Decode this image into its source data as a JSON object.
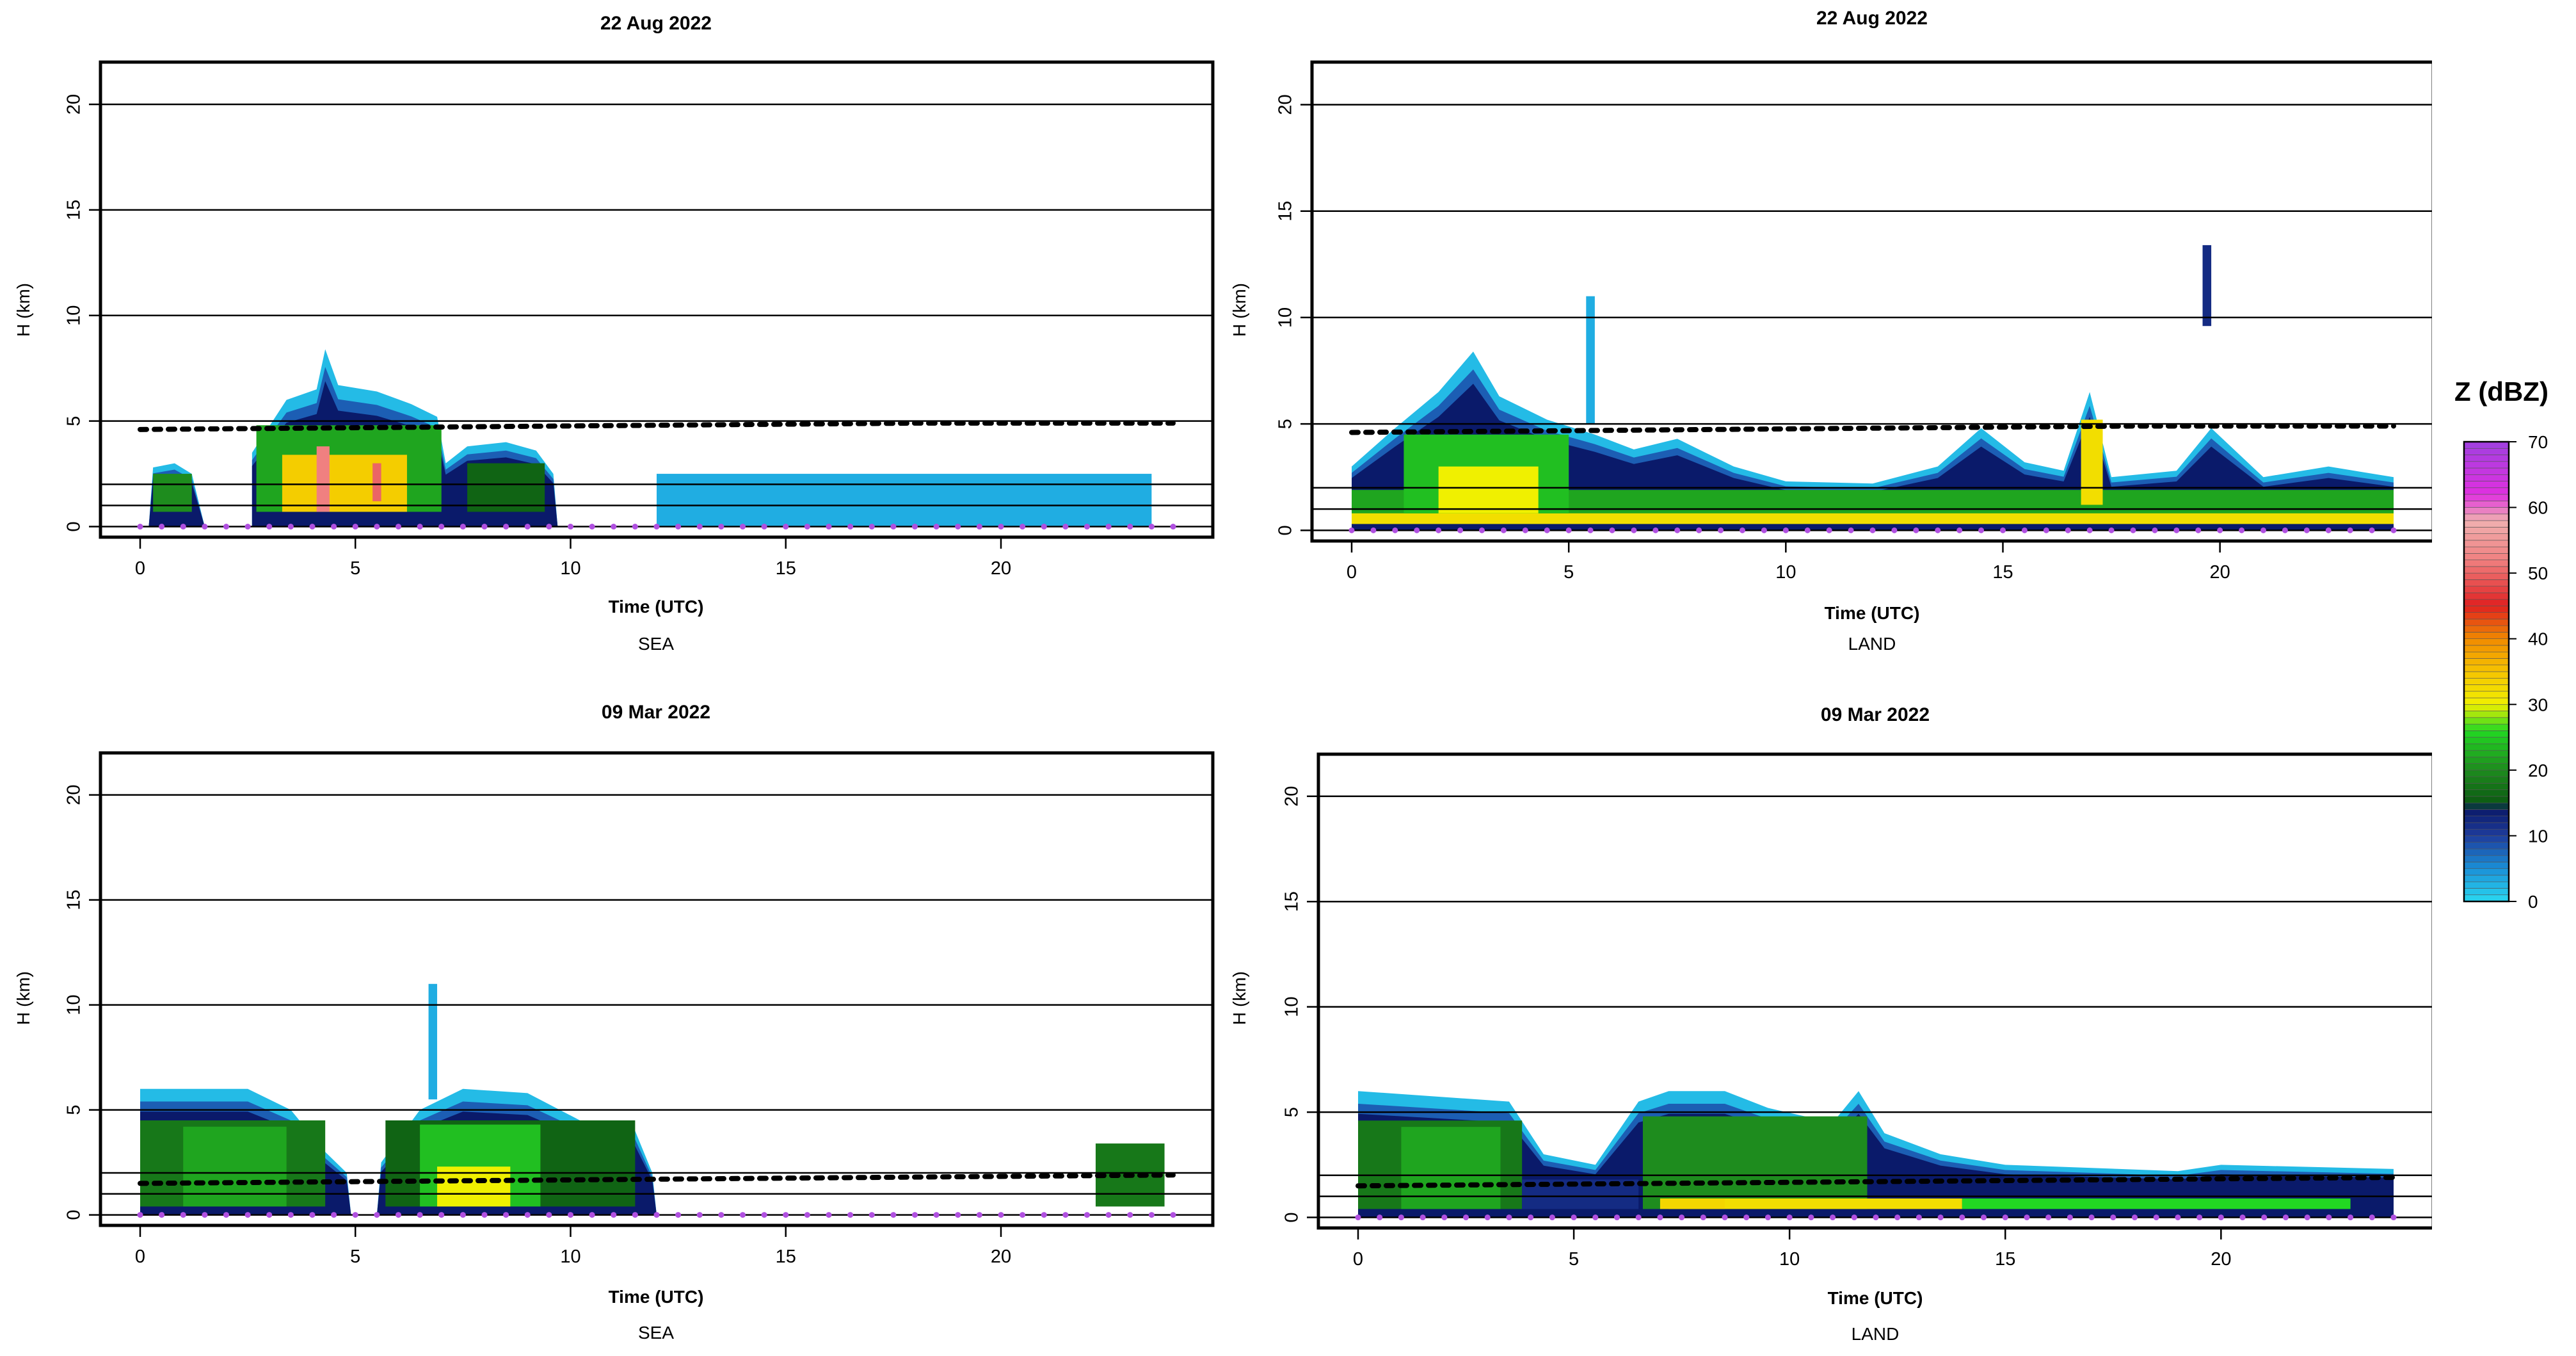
{
  "chart_data": [
    {
      "type": "heatmap",
      "title": "22 Aug 2022",
      "subtitle": "SEA",
      "xlabel": "Time (UTC)",
      "ylabel": "H (km)",
      "xlim": [
        0,
        24
      ],
      "ylim": [
        -0.5,
        22
      ],
      "xticks": [
        0,
        5,
        10,
        15,
        20
      ],
      "yticks": [
        0,
        5,
        10,
        15,
        20
      ],
      "hlines": [
        0,
        1,
        2,
        5,
        10,
        15,
        20
      ],
      "freezing_level": [
        [
          0,
          4.6
        ],
        [
          6,
          4.7
        ],
        [
          12,
          4.8
        ],
        [
          18,
          4.9
        ],
        [
          24,
          4.9
        ]
      ],
      "cloud_top": [
        [
          0.2,
          0
        ],
        [
          0.3,
          2.8
        ],
        [
          0.8,
          3
        ],
        [
          1.2,
          2.5
        ],
        [
          1.5,
          0
        ],
        [
          2.6,
          0
        ],
        [
          2.6,
          3.5
        ],
        [
          3.4,
          6
        ],
        [
          4.1,
          6.5
        ],
        [
          4.3,
          8.4
        ],
        [
          4.6,
          6.7
        ],
        [
          5.5,
          6.4
        ],
        [
          6.3,
          5.8
        ],
        [
          6.9,
          5.2
        ],
        [
          7.1,
          3
        ],
        [
          7.6,
          3.8
        ],
        [
          8.5,
          4
        ],
        [
          9.2,
          3.6
        ],
        [
          9.6,
          2.5
        ],
        [
          9.7,
          0
        ]
      ],
      "cloud_base": [
        0.7
      ],
      "cells": [
        {
          "t0": 0.3,
          "t1": 1.2,
          "h0": 0.7,
          "h1": 2.5,
          "dbz": 20
        },
        {
          "t0": 2.7,
          "t1": 7.0,
          "h0": 0.7,
          "h1": 4.8,
          "dbz": 22
        },
        {
          "t0": 3.3,
          "t1": 6.2,
          "h0": 0.7,
          "h1": 3.4,
          "dbz": 34
        },
        {
          "t0": 4.1,
          "t1": 4.4,
          "h0": 0.7,
          "h1": 3.8,
          "dbz": 52
        },
        {
          "t0": 5.4,
          "t1": 5.6,
          "h0": 1.2,
          "h1": 3.0,
          "dbz": 50
        },
        {
          "t0": 7.6,
          "t1": 9.4,
          "h0": 0.7,
          "h1": 3.0,
          "dbz": 16
        },
        {
          "t0": 12.0,
          "t1": 23.5,
          "h0": 0.0,
          "h1": 2.5,
          "dbz": 3
        }
      ]
    },
    {
      "type": "heatmap",
      "title": "22 Aug 2022",
      "subtitle": "LAND",
      "xlabel": "Time (UTC)",
      "ylabel": "H (km)",
      "xlim": [
        0,
        24
      ],
      "ylim": [
        -0.5,
        22
      ],
      "xticks": [
        0,
        5,
        10,
        15,
        20
      ],
      "yticks": [
        0,
        5,
        10,
        15,
        20
      ],
      "hlines": [
        0,
        1,
        2,
        5,
        10,
        15,
        20
      ],
      "freezing_level": [
        [
          0,
          4.6
        ],
        [
          6,
          4.7
        ],
        [
          12,
          4.8
        ],
        [
          18,
          4.9
        ],
        [
          24,
          4.9
        ]
      ],
      "cloud_top": [
        [
          0,
          0
        ],
        [
          0,
          3
        ],
        [
          1,
          4.8
        ],
        [
          2,
          6.5
        ],
        [
          2.8,
          8.4
        ],
        [
          3.4,
          6.3
        ],
        [
          4.5,
          5.2
        ],
        [
          5.6,
          4.5
        ],
        [
          6.5,
          3.8
        ],
        [
          7.5,
          4.3
        ],
        [
          8.8,
          3
        ],
        [
          10,
          2.3
        ],
        [
          12,
          2.2
        ],
        [
          13.5,
          3
        ],
        [
          14.5,
          4.8
        ],
        [
          15.5,
          3.2
        ],
        [
          16.4,
          2.8
        ],
        [
          17,
          6.5
        ],
        [
          17.5,
          2.5
        ],
        [
          19,
          2.8
        ],
        [
          19.8,
          4.8
        ],
        [
          21,
          2.5
        ],
        [
          22.5,
          3
        ],
        [
          24,
          2.5
        ],
        [
          24,
          0
        ]
      ],
      "cells": [
        {
          "t0": 0.0,
          "t1": 24.0,
          "h0": 0.3,
          "h1": 1.9,
          "dbz": 22
        },
        {
          "t0": 0.0,
          "t1": 24.0,
          "h0": 0.3,
          "h1": 0.8,
          "dbz": 32
        },
        {
          "t0": 1.2,
          "t1": 5.0,
          "h0": 0.8,
          "h1": 4.5,
          "dbz": 24
        },
        {
          "t0": 2.0,
          "t1": 4.3,
          "h0": 0.8,
          "h1": 3.0,
          "dbz": 30
        },
        {
          "t0": 16.8,
          "t1": 17.3,
          "h0": 1.2,
          "h1": 5.2,
          "dbz": 32
        },
        {
          "t0": 19.6,
          "t1": 19.8,
          "h0": 9.6,
          "h1": 13.4,
          "dbz": 12
        },
        {
          "t0": 5.4,
          "t1": 5.6,
          "h0": 5.0,
          "h1": 11.0,
          "dbz": 3
        }
      ]
    },
    {
      "type": "heatmap",
      "title": "09 Mar 2022",
      "subtitle": "SEA",
      "xlabel": "Time (UTC)",
      "ylabel": "H (km)",
      "xlim": [
        0,
        24
      ],
      "ylim": [
        -0.5,
        22
      ],
      "xticks": [
        0,
        5,
        10,
        15,
        20
      ],
      "yticks": [
        0,
        5,
        10,
        15,
        20
      ],
      "hlines": [
        0,
        1,
        2,
        5,
        10,
        15,
        20
      ],
      "freezing_level": [
        [
          0,
          1.5
        ],
        [
          6,
          1.6
        ],
        [
          12,
          1.7
        ],
        [
          18,
          1.8
        ],
        [
          24,
          1.9
        ]
      ],
      "cloud_top": [
        [
          0,
          0
        ],
        [
          0,
          6
        ],
        [
          2.5,
          6
        ],
        [
          3.5,
          5
        ],
        [
          4.3,
          3
        ],
        [
          4.8,
          2
        ],
        [
          4.9,
          0
        ],
        [
          5.5,
          0
        ],
        [
          5.6,
          2.5
        ],
        [
          6.5,
          5
        ],
        [
          7.5,
          6
        ],
        [
          9,
          5.8
        ],
        [
          10.5,
          4.2
        ],
        [
          11.5,
          4
        ],
        [
          11.9,
          2
        ],
        [
          12,
          0
        ]
      ],
      "cells": [
        {
          "t0": 0.0,
          "t1": 4.3,
          "h0": 0.4,
          "h1": 4.5,
          "dbz": 18
        },
        {
          "t0": 1.0,
          "t1": 3.4,
          "h0": 0.4,
          "h1": 4.2,
          "dbz": 22
        },
        {
          "t0": 5.7,
          "t1": 11.5,
          "h0": 0.4,
          "h1": 4.5,
          "dbz": 16
        },
        {
          "t0": 6.5,
          "t1": 9.3,
          "h0": 0.4,
          "h1": 4.3,
          "dbz": 24
        },
        {
          "t0": 6.9,
          "t1": 8.6,
          "h0": 0.4,
          "h1": 2.3,
          "dbz": 30
        },
        {
          "t0": 22.2,
          "t1": 23.8,
          "h0": 0.4,
          "h1": 3.4,
          "dbz": 18
        },
        {
          "t0": 6.7,
          "t1": 6.9,
          "h0": 5.5,
          "h1": 11.0,
          "dbz": 3
        }
      ]
    },
    {
      "type": "heatmap",
      "title": "09 Mar 2022",
      "subtitle": "LAND",
      "xlabel": "Time (UTC)",
      "ylabel": "H (km)",
      "xlim": [
        0,
        24
      ],
      "ylim": [
        -0.5,
        22
      ],
      "xticks": [
        0,
        5,
        10,
        15,
        20
      ],
      "yticks": [
        0,
        5,
        10,
        15,
        20
      ],
      "hlines": [
        0,
        1,
        2,
        5,
        10,
        15,
        20
      ],
      "freezing_level": [
        [
          0,
          1.5
        ],
        [
          6,
          1.6
        ],
        [
          12,
          1.7
        ],
        [
          18,
          1.8
        ],
        [
          24,
          1.9
        ]
      ],
      "cloud_top": [
        [
          0,
          0
        ],
        [
          0,
          6
        ],
        [
          3.5,
          5.5
        ],
        [
          4.3,
          3
        ],
        [
          5.5,
          2.5
        ],
        [
          6.5,
          5.5
        ],
        [
          7.2,
          6
        ],
        [
          8.5,
          6
        ],
        [
          9.5,
          5.2
        ],
        [
          11,
          4.5
        ],
        [
          11.6,
          6
        ],
        [
          12.2,
          4
        ],
        [
          13.5,
          3
        ],
        [
          15,
          2.5
        ],
        [
          19,
          2.2
        ],
        [
          20,
          2.5
        ],
        [
          24,
          2.3
        ],
        [
          24,
          0
        ]
      ],
      "cells": [
        {
          "t0": 0.0,
          "t1": 3.8,
          "h0": 0.4,
          "h1": 4.6,
          "dbz": 18
        },
        {
          "t0": 1.0,
          "t1": 3.3,
          "h0": 0.4,
          "h1": 4.3,
          "dbz": 22
        },
        {
          "t0": 3.8,
          "t1": 6.5,
          "h0": 0.4,
          "h1": 1.8,
          "dbz": 12
        },
        {
          "t0": 6.6,
          "t1": 11.8,
          "h0": 0.4,
          "h1": 4.8,
          "dbz": 20
        },
        {
          "t0": 7.2,
          "t1": 14.0,
          "h0": 0.4,
          "h1": 0.9,
          "dbz": 32
        },
        {
          "t0": 14.0,
          "t1": 23.0,
          "h0": 0.4,
          "h1": 0.9,
          "dbz": 26
        },
        {
          "t0": 7.0,
          "t1": 8.5,
          "h0": 0.4,
          "h1": 0.9,
          "dbz": 33
        }
      ]
    }
  ],
  "colorbar": {
    "title": "Z (dBZ)",
    "min": 0,
    "max": 70,
    "ticks": [
      0,
      10,
      20,
      30,
      40,
      50,
      60,
      70
    ],
    "stops": [
      {
        "v": 0,
        "c": "#2ad8f0"
      },
      {
        "v": 5,
        "c": "#1a90d8"
      },
      {
        "v": 10,
        "c": "#1e3c9c"
      },
      {
        "v": 14,
        "c": "#0a1a6a"
      },
      {
        "v": 15,
        "c": "#0c5a12"
      },
      {
        "v": 20,
        "c": "#1e8c1e"
      },
      {
        "v": 26,
        "c": "#22d822"
      },
      {
        "v": 30,
        "c": "#f0f000"
      },
      {
        "v": 35,
        "c": "#f5c400"
      },
      {
        "v": 40,
        "c": "#f08a00"
      },
      {
        "v": 45,
        "c": "#e02020"
      },
      {
        "v": 52,
        "c": "#f08080"
      },
      {
        "v": 58,
        "c": "#f0b0b0"
      },
      {
        "v": 62,
        "c": "#e030e0"
      },
      {
        "v": 70,
        "c": "#a040e0"
      }
    ]
  }
}
